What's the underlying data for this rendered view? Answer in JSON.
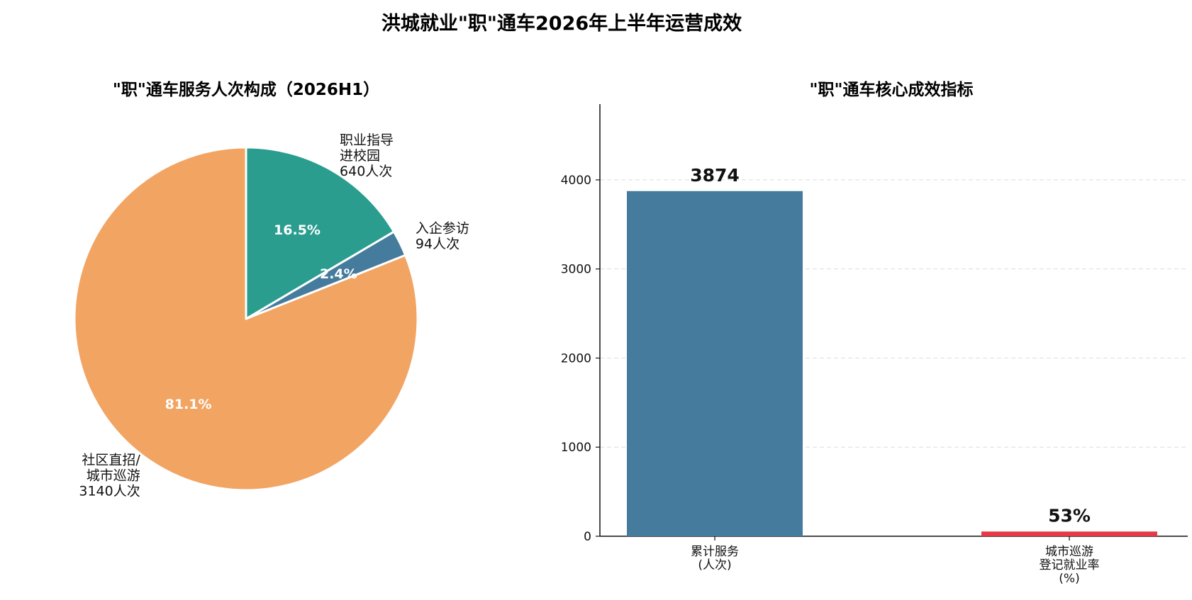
{
  "title": "洪城就业\"职\"通车2026年上半年运营成效",
  "chart_data": [
    {
      "type": "pie",
      "title": "\"职\"通车服务人次构成（2026H1）",
      "slices": [
        {
          "label_lines": [
            "社区直招/",
            "城市巡游",
            "3140人次"
          ],
          "value": 3140,
          "pct_label": "81.1%",
          "color": "#F2A463"
        },
        {
          "label_lines": [
            "入企参访",
            "94人次"
          ],
          "value": 94,
          "pct_label": "2.4%",
          "color": "#457B9D"
        },
        {
          "label_lines": [
            "职业指导",
            "进校园",
            "640人次"
          ],
          "value": 640,
          "pct_label": "16.5%",
          "color": "#2A9D8F"
        }
      ],
      "start_angle": 90,
      "direction": "counterclockwise"
    },
    {
      "type": "bar",
      "title": "\"职\"通车核心成效指标",
      "categories": [
        [
          "累计服务",
          "(人次)"
        ],
        [
          "城市巡游",
          "登记就业率",
          "(%)"
        ]
      ],
      "values": [
        3874,
        53
      ],
      "value_labels": [
        "3874",
        "53%"
      ],
      "colors": [
        "#457B9D",
        "#E63946"
      ],
      "ylim": [
        0,
        4850
      ],
      "yticks": [
        0,
        1000,
        2000,
        3000,
        4000
      ],
      "grid": "y-dashed"
    }
  ]
}
